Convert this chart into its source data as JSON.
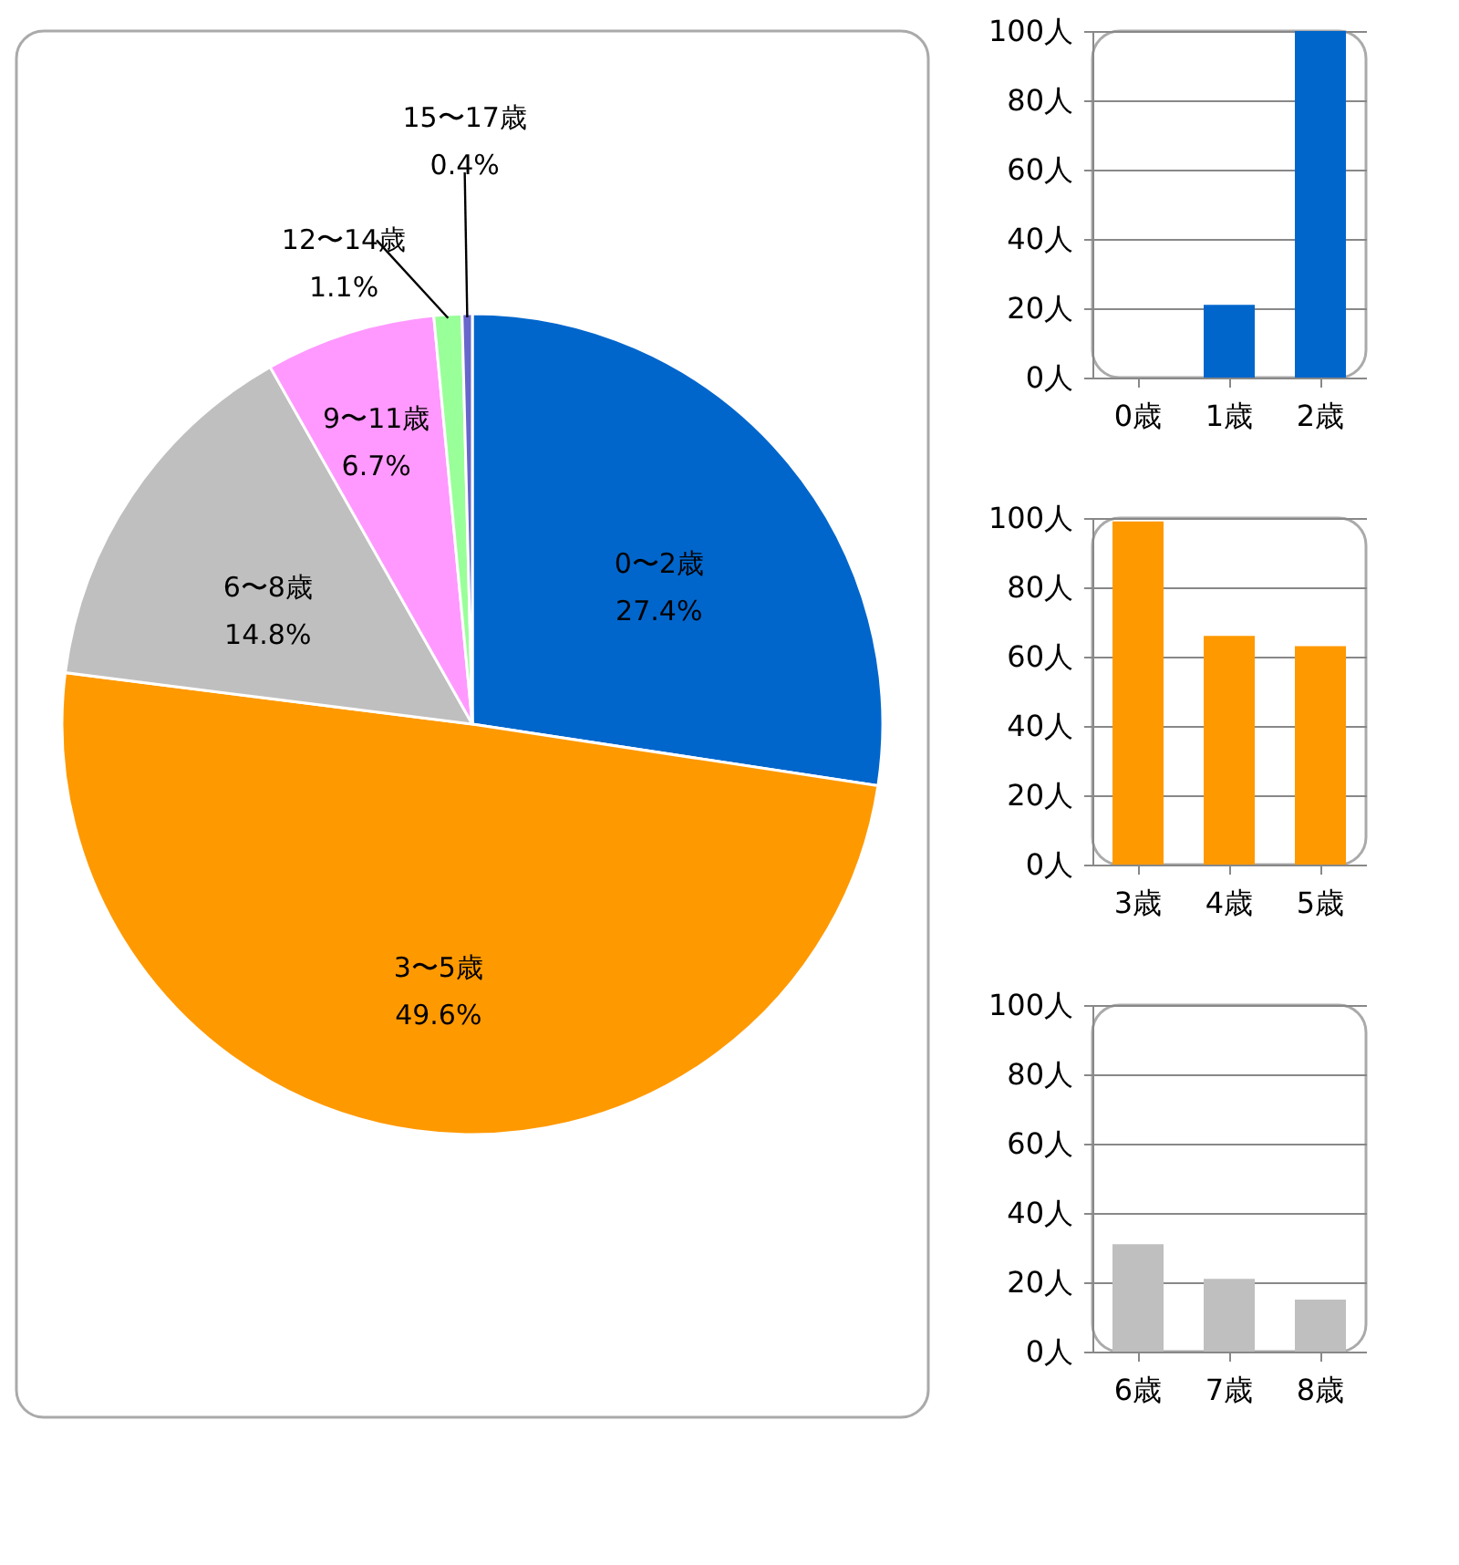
{
  "chart_data": [
    {
      "type": "pie",
      "categories": [
        "0〜2歳",
        "3〜5歳",
        "6〜8歳",
        "9〜11歳",
        "12〜14歳",
        "15〜17歳"
      ],
      "values": [
        27.4,
        49.6,
        14.8,
        6.7,
        1.1,
        0.4
      ],
      "colors": [
        "#0066cc",
        "#ff9900",
        "#bfbfbf",
        "#ff99ff",
        "#99ff99",
        "#6666cc"
      ],
      "value_labels": [
        "27.4%",
        "49.6%",
        "14.8%",
        "6.7%",
        "1.1%",
        "0.4%"
      ]
    },
    {
      "type": "bar",
      "categories": [
        "0歳",
        "1歳",
        "2歳"
      ],
      "values": [
        0,
        21,
        100
      ],
      "color": "#0066cc",
      "ylim": [
        0,
        100
      ],
      "yticks": [
        {
          "value": 0,
          "label": "0人"
        },
        {
          "value": 20,
          "label": "20人"
        },
        {
          "value": 40,
          "label": "40人"
        },
        {
          "value": 60,
          "label": "60人"
        },
        {
          "value": 80,
          "label": "80人"
        },
        {
          "value": 100,
          "label": "100人"
        }
      ],
      "grid": "y"
    },
    {
      "type": "bar",
      "categories": [
        "3歳",
        "4歳",
        "5歳"
      ],
      "values": [
        99,
        66,
        63
      ],
      "color": "#ff9900",
      "ylim": [
        0,
        100
      ],
      "yticks": [
        {
          "value": 0,
          "label": "0人"
        },
        {
          "value": 20,
          "label": "20人"
        },
        {
          "value": 40,
          "label": "40人"
        },
        {
          "value": 60,
          "label": "60人"
        },
        {
          "value": 80,
          "label": "80人"
        },
        {
          "value": 100,
          "label": "100人"
        }
      ],
      "grid": "y"
    },
    {
      "type": "bar",
      "categories": [
        "6歳",
        "7歳",
        "8歳"
      ],
      "values": [
        31,
        21,
        15
      ],
      "color": "#bfbfbf",
      "ylim": [
        0,
        100
      ],
      "yticks": [
        {
          "value": 0,
          "label": "0人"
        },
        {
          "value": 20,
          "label": "20人"
        },
        {
          "value": 40,
          "label": "40人"
        },
        {
          "value": 60,
          "label": "60人"
        },
        {
          "value": 80,
          "label": "80人"
        },
        {
          "value": 100,
          "label": "100人"
        }
      ],
      "grid": "y"
    }
  ]
}
